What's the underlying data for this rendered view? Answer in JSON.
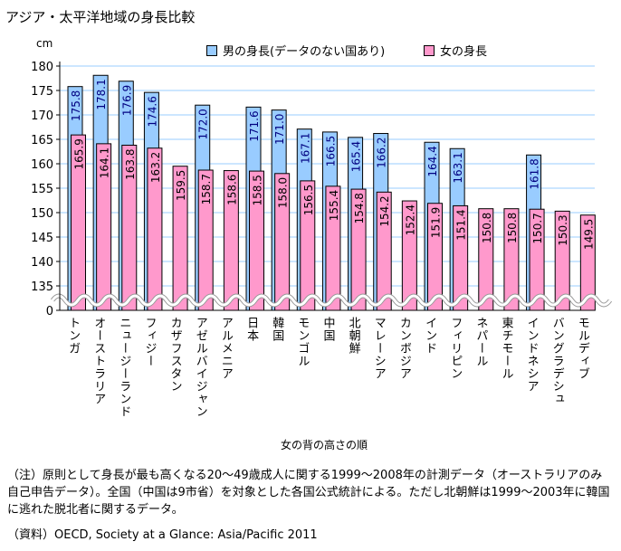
{
  "title": "アジア・太平洋地域の身長比較",
  "note": "（注）原則として身長が最も高くなる20～49歳成人に関する1999～2008年の計測データ（オーストラリアのみ自己申告データ）。全国（中国は9市省）を対象とした各国公式統計による。ただし北朝鮮は1999～2003年に韓国に逃れた脱北者に関するデータ。",
  "source": "（資料）OECD, Society at a Glance: Asia/Pacific 2011",
  "chart_data": {
    "type": "bar",
    "title": "アジア・太平洋地域の身長比較",
    "ylabel": "cm",
    "xlabel": "女の背の高さの順",
    "ylim": [
      130,
      180
    ],
    "y_break": "axis break between 0 and 135",
    "yticks": [
      "180",
      "175",
      "170",
      "165",
      "160",
      "155",
      "150",
      "145",
      "140",
      "135",
      "0"
    ],
    "grid": true,
    "legend_position": "top",
    "categories": [
      "トンガ",
      "オーストラリア",
      "ニュージーランド",
      "フィジー",
      "カザフスタン",
      "アゼルバイジャン",
      "アルメニア",
      "日本",
      "韓国",
      "モンゴル",
      "中国",
      "北朝鮮",
      "マレーシア",
      "カンボジア",
      "インド",
      "フィリピン",
      "ネパール",
      "東チモール",
      "インドネシア",
      "バングラデシュ",
      "モルディブ"
    ],
    "series": [
      {
        "name": "男の身長(データのない国あり)",
        "color": "#99ccff",
        "values": [
          175.8,
          178.1,
          176.9,
          174.6,
          null,
          172.0,
          null,
          171.6,
          171.0,
          167.1,
          166.5,
          165.4,
          166.2,
          null,
          164.4,
          163.1,
          null,
          null,
          161.8,
          null,
          null
        ]
      },
      {
        "name": "女の身長",
        "color": "#ff99cc",
        "values": [
          165.9,
          164.1,
          163.8,
          163.2,
          159.5,
          158.7,
          158.6,
          158.5,
          158.0,
          156.5,
          155.4,
          154.8,
          154.2,
          152.4,
          151.9,
          151.4,
          150.8,
          150.8,
          150.7,
          150.3,
          149.5
        ]
      }
    ]
  }
}
